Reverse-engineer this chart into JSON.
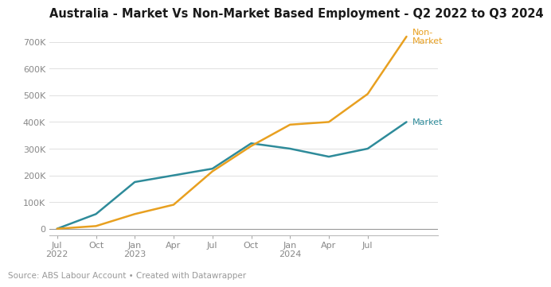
{
  "title": "Australia - Market Vs Non-Market Based Employment - Q2 2022 to Q3 2024",
  "source_text": "Source: ABS Labour Account • Created with Datawrapper",
  "market_color": "#2e8b9a",
  "nonmarket_color": "#e8a020",
  "background_color": "#ffffff",
  "market_x": [
    0,
    1,
    2,
    3,
    4,
    5,
    6,
    7,
    8,
    9
  ],
  "market_y": [
    0,
    55000,
    175000,
    200000,
    225000,
    320000,
    300000,
    270000,
    300000,
    400000
  ],
  "nonmarket_x": [
    0,
    1,
    2,
    3,
    4,
    5,
    6,
    7,
    8,
    9
  ],
  "nonmarket_y": [
    0,
    10000,
    55000,
    90000,
    215000,
    310000,
    390000,
    400000,
    505000,
    720000
  ],
  "x_tick_positions": [
    0,
    1,
    2,
    3,
    4,
    5,
    6,
    7,
    8
  ],
  "x_tick_labels": [
    "Jul\n2022",
    "Oct",
    "Jan\n2023",
    "Apr",
    "Jul",
    "Oct",
    "Jan\n2024",
    "Apr",
    "Jul"
  ],
  "ylim": [
    -25000,
    760000
  ],
  "xlim": [
    -0.2,
    9.8
  ],
  "ytick_values": [
    0,
    100000,
    200000,
    300000,
    400000,
    500000,
    600000,
    700000
  ],
  "ytick_labels": [
    "0",
    "100K",
    "200K",
    "300K",
    "400K",
    "500K",
    "600K",
    "700K"
  ],
  "grid_color": "#e0e0e0",
  "label_market": "Market",
  "label_nonmarket": "Non-\nMarket",
  "title_fontsize": 10.5,
  "source_fontsize": 7.5,
  "tick_fontsize": 8,
  "label_fontsize": 8
}
